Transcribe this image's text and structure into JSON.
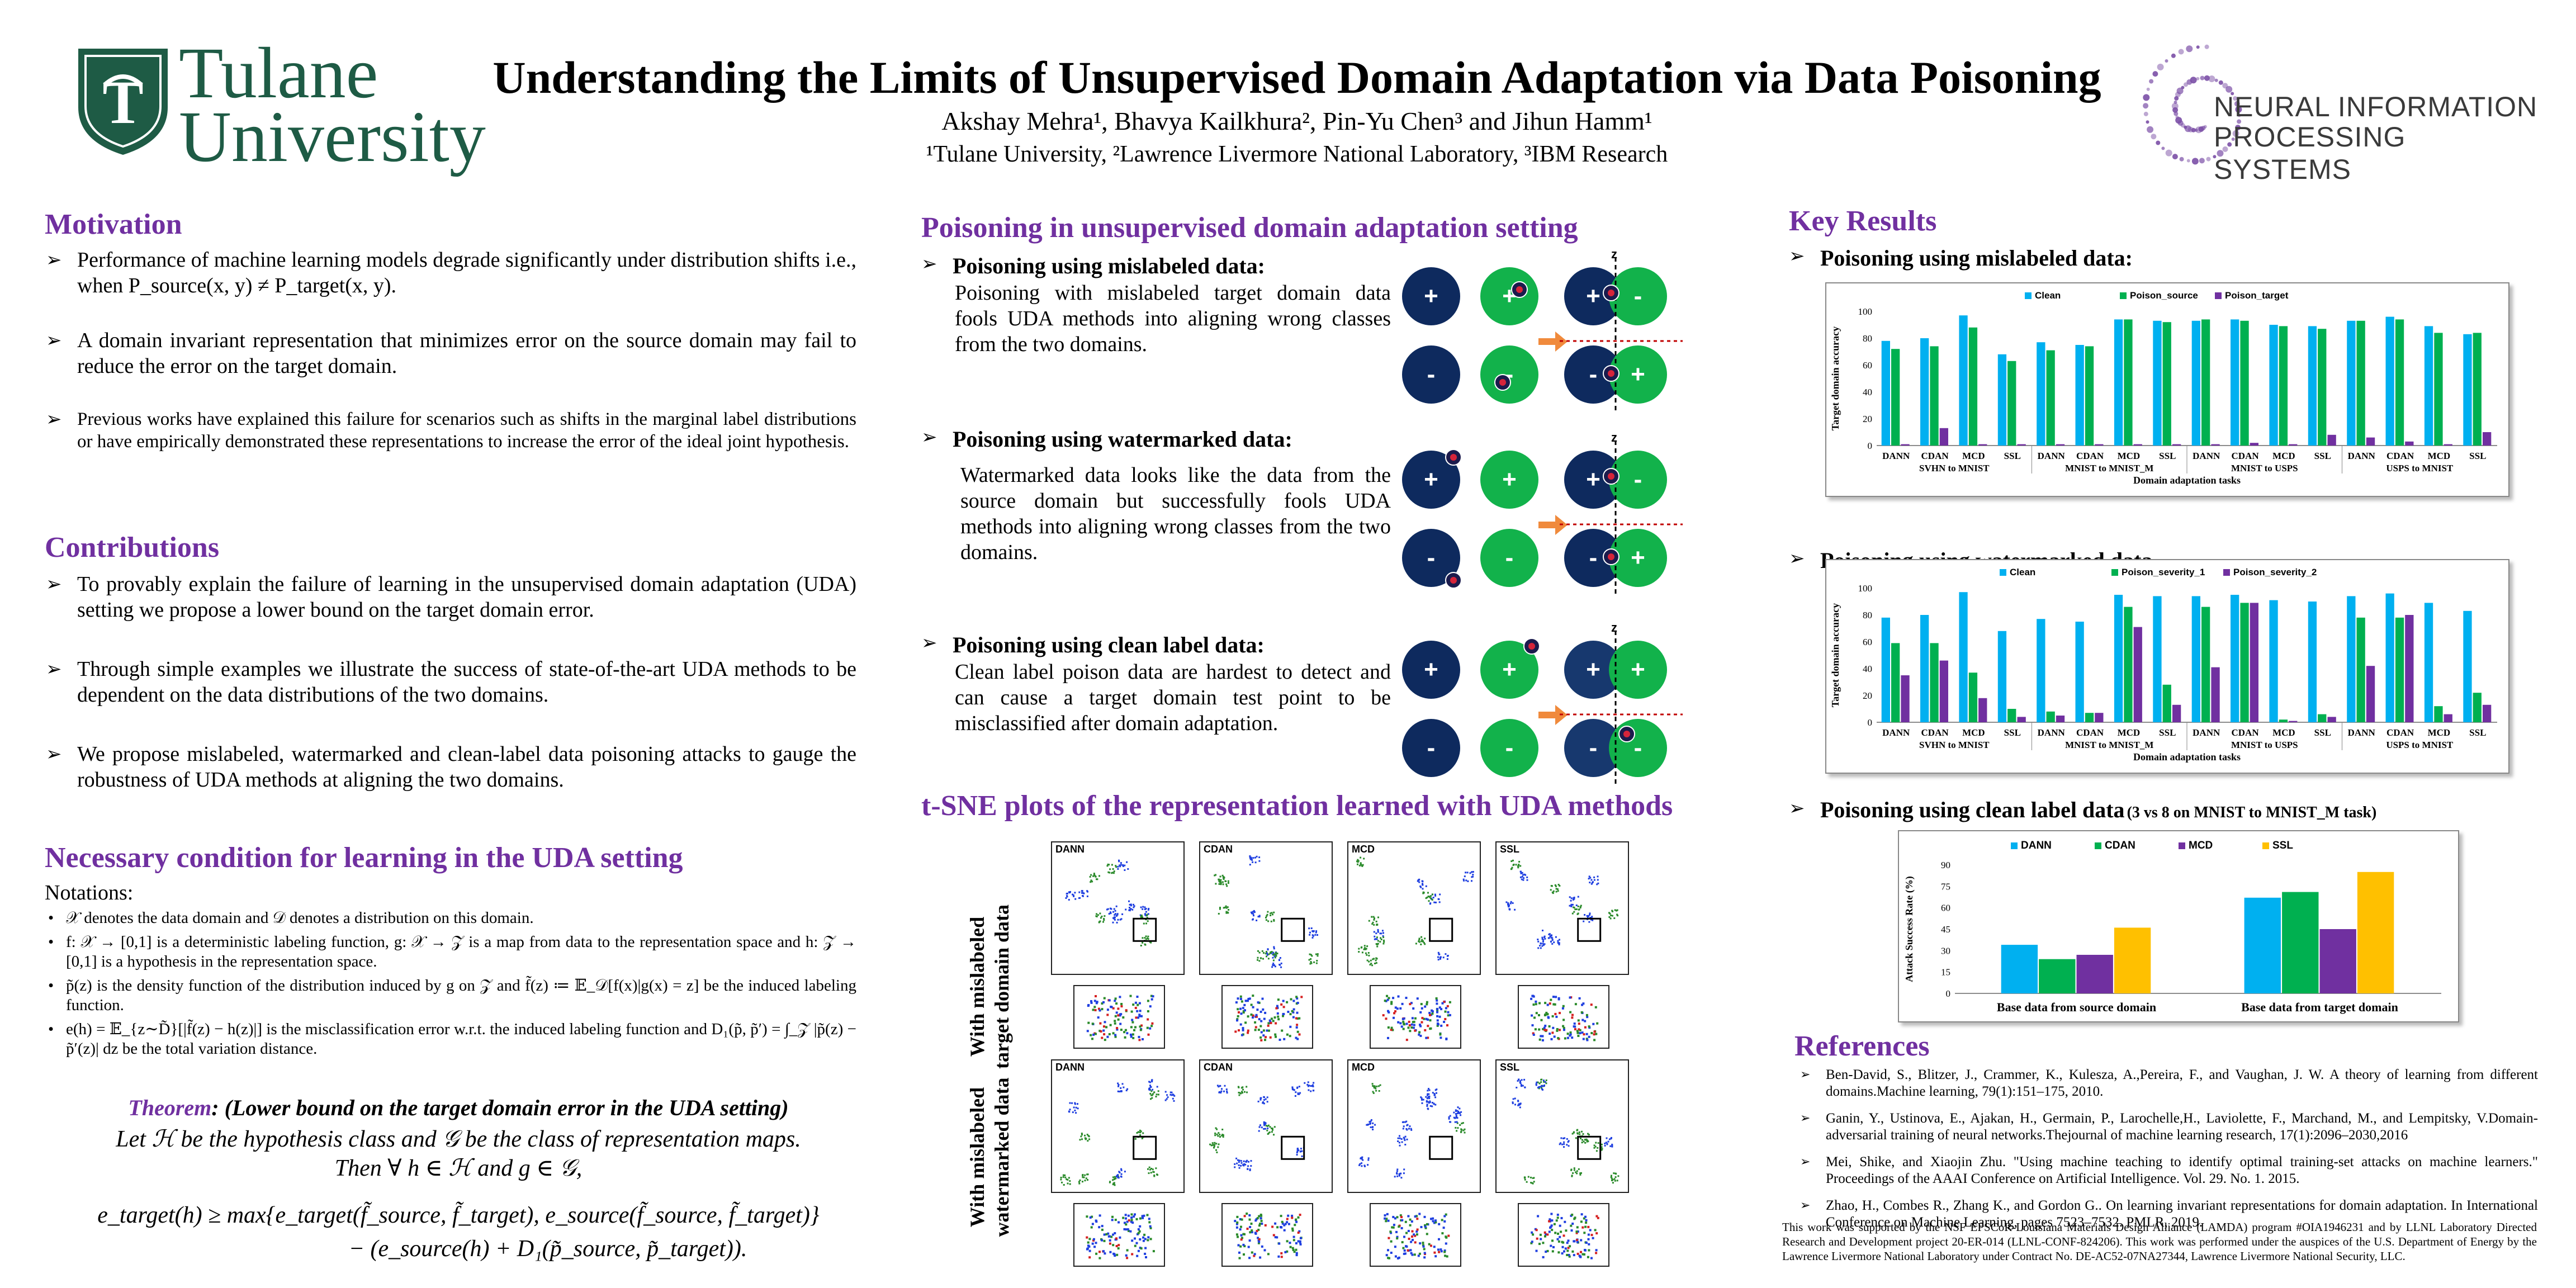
{
  "header": {
    "title": "Understanding the Limits of Unsupervised Domain Adaptation via Data Poisoning",
    "authors": "Akshay Mehra¹, Bhavya Kailkhura², Pin-Yu Chen³ and Jihun Hamm¹",
    "affiliations": "¹Tulane University, ²Lawrence Livermore National Laboratory, ³IBM Research",
    "logo_left_line1": "Tulane",
    "logo_left_line2": "University",
    "logo_right_line1": "NEURAL INFORMATION",
    "logo_right_line2": "PROCESSING SYSTEMS"
  },
  "motivation": {
    "heading": "Motivation",
    "b1": "Performance of machine learning models degrade significantly under distribution shifts i.e., when P_source(x, y) ≠ P_target(x, y).",
    "b2": "A domain invariant representation that minimizes error on the source domain may fail to reduce the error on the target domain.",
    "b3": "Previous works have explained this failure for scenarios such as shifts in the marginal label distributions or have empirically demonstrated these representations to increase the error of the ideal joint hypothesis."
  },
  "contributions": {
    "heading": "Contributions",
    "b1": "To provably explain the failure of learning in the unsupervised domain adaptation (UDA) setting we propose a lower bound on the target domain error.",
    "b2": "Through simple examples we illustrate the success of state-of-the-art UDA methods to be dependent on the data distributions of the two domains.",
    "b3": "We propose mislabeled, watermarked and clean-label data poisoning attacks to gauge the robustness of UDA methods at aligning the two domains."
  },
  "necessary": {
    "heading": "Necessary condition for learning in the UDA setting",
    "notations": "Notations:",
    "n1": "𝒳 denotes the data domain and 𝒟 denotes a distribution on this domain.",
    "n2": "f: 𝒳 → [0,1] is a deterministic labeling function, g: 𝒳 → 𝒵 is a map from data to the representation space and h: 𝒵 → [0,1] is a hypothesis in the representation space.",
    "n3": "p̃(z) is the density function of the distribution induced by g on 𝒵 and f̃(z) ≔ 𝔼_𝒟[f(x)|g(x) = z] be the induced labeling function.",
    "n4": "e(h) = 𝔼_{z∼D̃}[|f̃(z) − h(z)|] is the misclassification error w.r.t. the induced labeling function and D₁(p̃, p̃′) = ∫_𝒵 |p̃(z) − p̃′(z)| dz be the total variation distance.",
    "theorem_title": "Theorem: (Lower bound on the target domain error in the UDA setting)",
    "theorem_l1": "Let ℋ be the hypothesis class and 𝒢 be the class of representation maps.",
    "theorem_l2": "Then ∀ h ∈ ℋ and g ∈ 𝒢,",
    "eq1": "e_target(h) ≥ max{e_target(f̃_source, f̃_target), e_source(f̃_source, f̃_target)}",
    "eq2": "− (e_source(h) + D₁(p̃_source, p̃_target)).",
    "theorem_word": "Theorem",
    "theorem_rest": ": (Lower bound on the target domain error in the UDA setting)"
  },
  "poisoning": {
    "heading": "Poisoning in unsupervised domain adaptation setting",
    "s1_title": "Poisoning using  mislabeled data:",
    "s1_text": "Poisoning with mislabeled target domain data fools UDA methods into aligning wrong classes from the two domains.",
    "s2_title": "Poisoning using watermarked data:",
    "s2_text": "Watermarked data looks like the data from the source domain but successfully fools UDA methods into aligning wrong classes from the two domains.",
    "s3_title": "Poisoning using clean label data:",
    "s3_text": "Clean label poison data are hardest to detect and can cause a target domain test point to be misclassified after domain adaptation.",
    "plus": "+",
    "minus": "-",
    "z": "z"
  },
  "tsne": {
    "heading": "t-SNE plots of the representation learned with UDA methods",
    "row1_label_l1": "With mislabeled",
    "row1_label_l2": "target domain data",
    "row2_label_l1": "With mislabeled",
    "row2_label_l2": "watermarked data",
    "methods": [
      "DANN",
      "CDAN",
      "MCD",
      "SSL"
    ]
  },
  "results": {
    "heading": "Key Results",
    "r1_title": "Poisoning using  mislabeled data:",
    "r2_title": "Poisoning using watermarked data",
    "r3_title": "Poisoning using clean label data",
    "r3_note": "(3 vs 8 on MNIST to MNIST_M task)"
  },
  "chart_data": [
    {
      "type": "bar",
      "ylabel": "Target domain accuracy",
      "xlabel": "Domain adaptation tasks",
      "ylim": [
        0,
        100
      ],
      "yticks": [
        0,
        20,
        40,
        60,
        80,
        100
      ],
      "categories": [
        "DANN",
        "CDAN",
        "MCD",
        "SSL",
        "DANN",
        "CDAN",
        "MCD",
        "SSL",
        "DANN",
        "CDAN",
        "MCD",
        "SSL",
        "DANN",
        "CDAN",
        "MCD",
        "SSL"
      ],
      "groups": [
        "SVHN to MNIST",
        "MNIST to MNIST_M",
        "MNIST to USPS",
        "USPS to MNIST"
      ],
      "legend_position": "top",
      "series": [
        {
          "name": "Clean",
          "color": "#00b0f0",
          "values": [
            78,
            80,
            97,
            68,
            77,
            75,
            94,
            93,
            93,
            94,
            90,
            89,
            93,
            96,
            89,
            83
          ]
        },
        {
          "name": "Poison_source",
          "color": "#00b050",
          "values": [
            72,
            74,
            88,
            63,
            71,
            74,
            94,
            92,
            94,
            93,
            89,
            87,
            93,
            94,
            84,
            84
          ]
        },
        {
          "name": "Poison_target",
          "color": "#7030a0",
          "values": [
            1,
            13,
            1,
            1,
            1,
            1,
            1,
            1,
            1,
            2,
            1,
            8,
            6,
            3,
            1,
            10
          ]
        }
      ]
    },
    {
      "type": "bar",
      "ylabel": "Target domain accuracy",
      "xlabel": "Domain adaptation tasks",
      "ylim": [
        0,
        100
      ],
      "yticks": [
        0,
        20,
        40,
        60,
        80,
        100
      ],
      "categories": [
        "DANN",
        "CDAN",
        "MCD",
        "SSL",
        "DANN",
        "CDAN",
        "MCD",
        "SSL",
        "DANN",
        "CDAN",
        "MCD",
        "SSL",
        "DANN",
        "CDAN",
        "MCD",
        "SSL"
      ],
      "groups": [
        "SVHN to MNIST",
        "MNIST to MNIST_M",
        "MNIST to USPS",
        "USPS to MNIST"
      ],
      "legend_position": "top",
      "series": [
        {
          "name": "Clean",
          "color": "#00b0f0",
          "values": [
            78,
            80,
            97,
            68,
            77,
            75,
            95,
            94,
            94,
            95,
            91,
            90,
            94,
            96,
            89,
            83
          ]
        },
        {
          "name": "Poison_severity_1",
          "color": "#00b050",
          "values": [
            59,
            59,
            37,
            10,
            8,
            7,
            86,
            28,
            86,
            89,
            2,
            6,
            78,
            78,
            12,
            22
          ]
        },
        {
          "name": "Poison_severity_2",
          "color": "#7030a0",
          "values": [
            35,
            46,
            18,
            4,
            5,
            7,
            71,
            13,
            41,
            89,
            1,
            4,
            42,
            80,
            6,
            13
          ]
        }
      ]
    },
    {
      "type": "bar",
      "ylabel": "Attack Success Rate (%)",
      "ylim": [
        0,
        90
      ],
      "yticks": [
        0,
        15,
        30,
        45,
        60,
        75,
        90
      ],
      "categories": [
        "Base data from source domain",
        "Base data from target domain"
      ],
      "legend_position": "top",
      "series": [
        {
          "name": "DANN",
          "color": "#00b0f0",
          "values": [
            34,
            67
          ]
        },
        {
          "name": "CDAN",
          "color": "#00b050",
          "values": [
            24,
            71
          ]
        },
        {
          "name": "MCD",
          "color": "#7030a0",
          "values": [
            27,
            45
          ]
        },
        {
          "name": "SSL",
          "color": "#ffc000",
          "values": [
            46,
            85
          ]
        }
      ]
    }
  ],
  "references": {
    "heading": "References",
    "items": [
      "Ben-David, S., Blitzer, J., Crammer, K., Kulesza, A.,Pereira, F., and Vaughan, J. W. A theory of learning from different domains.Machine learning, 79(1):151–175, 2010.",
      "Ganin, Y., Ustinova, E., Ajakan, H., Germain, P., Larochelle,H., Laviolette, F., Marchand, M., and Lempitsky, V.Domain-adversarial training of neural networks.Thejournal of machine learning research, 17(1):2096–2030,2016",
      "Mei, Shike, and Xiaojin Zhu. \"Using machine teaching to identify optimal training-set attacks on machine learners.\" Proceedings of the AAAI Conference on Artificial Intelligence. Vol. 29. No. 1. 2015.",
      "Zhao, H., Combes R., Zhang K., and Gordon G.. On learning invariant representations for domain adaptation. In International Conference on Machine Learning, pages 7523–7532. PMLR, 2019."
    ],
    "ack": "This work was supported by the NSF EPSCoR-Louisiana Materials Design Alliance (LAMDA) program #OIA1946231 and by LLNL Laboratory Directed Research and Development project 20-ER-014 (LLNL-CONF-824206). This work was performed under the auspices of the U.S. Department of Energy by the Lawrence Livermore National Laboratory under Contract No. DE-AC52-07NA27344, Lawrence Livermore National Security, LLC."
  },
  "colors": {
    "heading": "#7030a0",
    "tulane_green": "#1e5b45",
    "navy": "#0e2a5e",
    "green": "#12b24b",
    "arrow": "#f08a3c"
  }
}
